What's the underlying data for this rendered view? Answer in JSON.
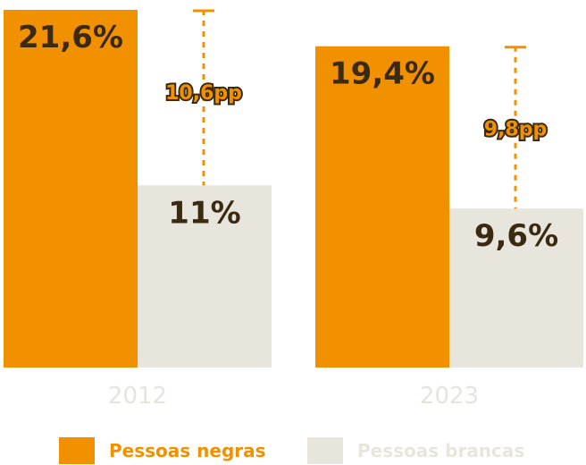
{
  "chart_data": {
    "type": "bar",
    "categories": [
      "2012",
      "2023"
    ],
    "series": [
      {
        "name": "Pessoas negras",
        "color": "#f29100",
        "values": [
          21.6,
          19.4
        ],
        "labels": [
          "21,6%",
          "19,4%"
        ]
      },
      {
        "name": "Pessoas brancas",
        "color": "#e8e6dc",
        "values": [
          11,
          9.6
        ],
        "labels": [
          "11%",
          "9,6%"
        ]
      }
    ],
    "annotations": [
      {
        "category": "2012",
        "text": "10,6pp",
        "value": 10.6
      },
      {
        "category": "2023",
        "text": "9,8pp",
        "value": 9.8
      }
    ],
    "ylim": [
      0,
      21.6
    ],
    "grid": false,
    "legend_position": "bottom",
    "title": "",
    "xlabel": "",
    "ylabel": ""
  },
  "colors": {
    "label_dark": "#3a2a12",
    "tick_text": "#e6e4dc"
  }
}
